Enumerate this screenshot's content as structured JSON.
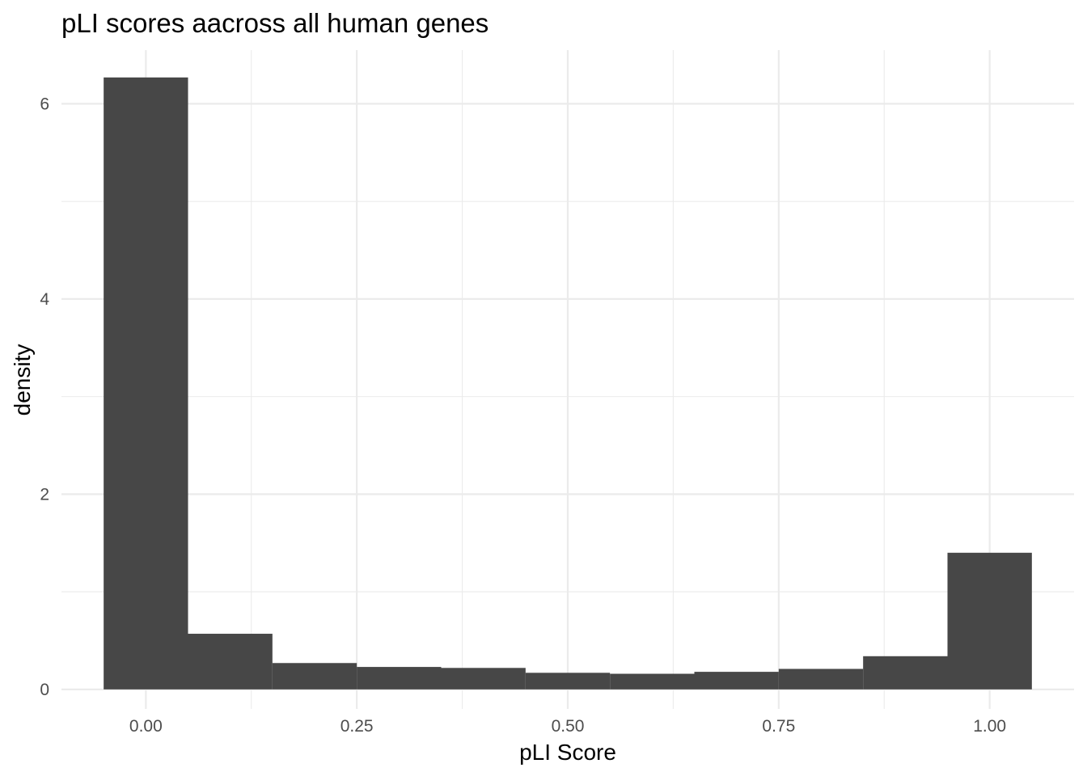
{
  "chart_data": {
    "type": "bar",
    "subtype": "histogram",
    "title": "pLI scores aacross all human genes",
    "xlabel": "pLI Score",
    "ylabel": "density",
    "bin_width": 0.1,
    "bin_centers": [
      0.0,
      0.1,
      0.2,
      0.3,
      0.4,
      0.5,
      0.6,
      0.7,
      0.8,
      0.9,
      1.0
    ],
    "values": [
      6.27,
      0.57,
      0.27,
      0.23,
      0.22,
      0.17,
      0.16,
      0.18,
      0.21,
      0.34,
      1.4
    ],
    "xlim": [
      -0.1,
      1.1
    ],
    "ylim": [
      -0.2,
      6.55
    ],
    "x_ticks": [
      0.0,
      0.25,
      0.5,
      0.75,
      1.0
    ],
    "x_tick_labels": [
      "0.00",
      "0.25",
      "0.50",
      "0.75",
      "1.00"
    ],
    "x_minor_ticks": [
      0.125,
      0.375,
      0.625,
      0.875
    ],
    "y_ticks": [
      0,
      2,
      4,
      6
    ],
    "y_tick_labels": [
      "0",
      "2",
      "4",
      "6"
    ],
    "y_minor_ticks": [
      1,
      3,
      5
    ],
    "grid": true,
    "legend": "none",
    "colors": {
      "bar": "#474747",
      "grid": "#ebebeb",
      "tick_text": "#4d4d4d",
      "title_text": "#000000",
      "background": "#ffffff"
    }
  }
}
